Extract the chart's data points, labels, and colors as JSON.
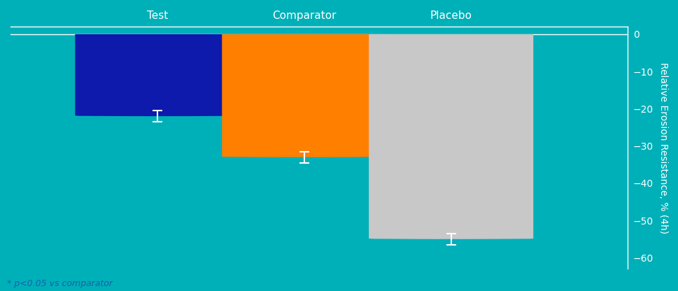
{
  "categories": [
    "Test",
    "Comparator",
    "Placebo"
  ],
  "values": [
    -22,
    -33,
    -55
  ],
  "errors": [
    1.5,
    1.5,
    1.5
  ],
  "bar_colors": [
    "#0d1aab",
    "#ff7f00",
    "#c8c8c8"
  ],
  "background_color": "#00b0b9",
  "bar_width": 0.28,
  "ylim": [
    -63,
    2
  ],
  "yticks": [
    0,
    -10,
    -20,
    -30,
    -40,
    -50,
    -60
  ],
  "ytick_labels": [
    "0",
    "−10",
    "−20",
    "−30",
    "−40",
    "−50",
    "−60"
  ],
  "ylabel": "Relative Erosion Resistance, % (4h)",
  "footnote": "* p<0.05 vs comparator",
  "text_color": "#ffffff",
  "footnote_color": "#1a5fa8",
  "error_color": "#ffffff",
  "axis_line_color": "#ffffff",
  "x_positions": [
    0.25,
    0.5,
    0.75
  ]
}
